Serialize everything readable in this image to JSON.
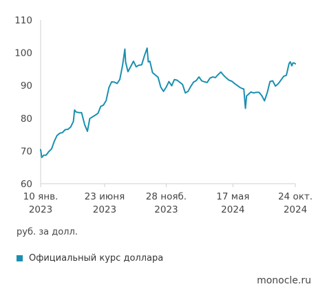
{
  "chart_data": {
    "type": "line",
    "title": "",
    "xlabel": "",
    "ylabel": "",
    "unit_label": "руб. за долл.",
    "ylim": [
      60,
      110
    ],
    "yticks": [
      60,
      70,
      80,
      90,
      100,
      110
    ],
    "xlim": [
      "2023-01-10",
      "2024-10-24"
    ],
    "xticks": [
      {
        "date": "2023-01-10",
        "line1": "10 янв.",
        "line2": "2023"
      },
      {
        "date": "2023-06-23",
        "line1": "23 июня",
        "line2": "2023"
      },
      {
        "date": "2023-11-28",
        "line1": "28 нояб.",
        "line2": "2023"
      },
      {
        "date": "2024-05-17",
        "line1": "17 мая",
        "line2": "2024"
      },
      {
        "date": "2024-10-24",
        "line1": "24 окт.",
        "line2": "2024"
      }
    ],
    "grid": false,
    "legend_position": "bottom-left",
    "series": [
      {
        "name": "Официальный курс доллара",
        "color": "#1a8fb0",
        "points": [
          [
            "2023-01-10",
            70.4
          ],
          [
            "2023-01-13",
            68.0
          ],
          [
            "2023-01-18",
            68.7
          ],
          [
            "2023-01-24",
            68.7
          ],
          [
            "2023-01-31",
            69.8
          ],
          [
            "2023-02-07",
            70.6
          ],
          [
            "2023-02-14",
            72.9
          ],
          [
            "2023-02-21",
            74.7
          ],
          [
            "2023-02-28",
            75.4
          ],
          [
            "2023-03-07",
            75.6
          ],
          [
            "2023-03-14",
            76.5
          ],
          [
            "2023-03-21",
            76.6
          ],
          [
            "2023-03-28",
            77.3
          ],
          [
            "2023-04-04",
            79.0
          ],
          [
            "2023-04-07",
            82.5
          ],
          [
            "2023-04-11",
            81.9
          ],
          [
            "2023-04-18",
            81.7
          ],
          [
            "2023-04-25",
            81.7
          ],
          [
            "2023-05-03",
            78.0
          ],
          [
            "2023-05-10",
            76.0
          ],
          [
            "2023-05-16",
            79.9
          ],
          [
            "2023-05-23",
            80.4
          ],
          [
            "2023-05-30",
            80.9
          ],
          [
            "2023-06-06",
            81.5
          ],
          [
            "2023-06-13",
            83.6
          ],
          [
            "2023-06-20",
            84.0
          ],
          [
            "2023-06-27",
            85.4
          ],
          [
            "2023-07-04",
            89.3
          ],
          [
            "2023-07-11",
            91.1
          ],
          [
            "2023-07-18",
            91.0
          ],
          [
            "2023-07-25",
            90.6
          ],
          [
            "2023-08-01",
            91.8
          ],
          [
            "2023-08-08",
            96.1
          ],
          [
            "2023-08-14",
            101.1
          ],
          [
            "2023-08-16",
            97.1
          ],
          [
            "2023-08-22",
            94.2
          ],
          [
            "2023-08-29",
            95.8
          ],
          [
            "2023-09-05",
            97.4
          ],
          [
            "2023-09-12",
            95.7
          ],
          [
            "2023-09-19",
            96.2
          ],
          [
            "2023-09-26",
            96.3
          ],
          [
            "2023-10-03",
            99.0
          ],
          [
            "2023-10-10",
            101.4
          ],
          [
            "2023-10-13",
            97.2
          ],
          [
            "2023-10-17",
            97.4
          ],
          [
            "2023-10-24",
            93.9
          ],
          [
            "2023-10-31",
            93.2
          ],
          [
            "2023-11-07",
            92.5
          ],
          [
            "2023-11-14",
            89.5
          ],
          [
            "2023-11-21",
            88.2
          ],
          [
            "2023-11-28",
            89.5
          ],
          [
            "2023-12-05",
            91.2
          ],
          [
            "2023-12-12",
            89.9
          ],
          [
            "2023-12-19",
            91.8
          ],
          [
            "2023-12-26",
            91.6
          ],
          [
            "2024-01-09",
            90.3
          ],
          [
            "2024-01-16",
            87.7
          ],
          [
            "2024-01-23",
            88.2
          ],
          [
            "2024-01-30",
            89.7
          ],
          [
            "2024-02-06",
            91.0
          ],
          [
            "2024-02-13",
            91.5
          ],
          [
            "2024-02-20",
            92.6
          ],
          [
            "2024-02-27",
            91.4
          ],
          [
            "2024-03-05",
            91.1
          ],
          [
            "2024-03-12",
            90.9
          ],
          [
            "2024-03-19",
            92.2
          ],
          [
            "2024-03-26",
            92.6
          ],
          [
            "2024-04-02",
            92.4
          ],
          [
            "2024-04-09",
            93.3
          ],
          [
            "2024-04-16",
            94.1
          ],
          [
            "2024-04-23",
            93.1
          ],
          [
            "2024-04-30",
            92.3
          ],
          [
            "2024-05-07",
            91.6
          ],
          [
            "2024-05-14",
            91.3
          ],
          [
            "2024-05-21",
            90.6
          ],
          [
            "2024-05-28",
            90.0
          ],
          [
            "2024-06-04",
            89.4
          ],
          [
            "2024-06-11",
            89.0
          ],
          [
            "2024-06-14",
            88.9
          ],
          [
            "2024-06-18",
            83.0
          ],
          [
            "2024-06-21",
            86.8
          ],
          [
            "2024-06-25",
            87.2
          ],
          [
            "2024-07-02",
            88.0
          ],
          [
            "2024-07-09",
            87.7
          ],
          [
            "2024-07-16",
            87.9
          ],
          [
            "2024-07-23",
            87.9
          ],
          [
            "2024-07-30",
            86.9
          ],
          [
            "2024-08-06",
            85.3
          ],
          [
            "2024-08-13",
            87.8
          ],
          [
            "2024-08-20",
            91.2
          ],
          [
            "2024-08-27",
            91.4
          ],
          [
            "2024-09-03",
            89.8
          ],
          [
            "2024-09-10",
            90.5
          ],
          [
            "2024-09-17",
            91.6
          ],
          [
            "2024-09-24",
            92.8
          ],
          [
            "2024-10-01",
            93.1
          ],
          [
            "2024-10-08",
            96.7
          ],
          [
            "2024-10-11",
            97.2
          ],
          [
            "2024-10-15",
            96.0
          ],
          [
            "2024-10-18",
            96.9
          ],
          [
            "2024-10-22",
            96.8
          ],
          [
            "2024-10-24",
            96.6
          ]
        ]
      }
    ]
  },
  "footer": {
    "source": "monocle.ru"
  }
}
